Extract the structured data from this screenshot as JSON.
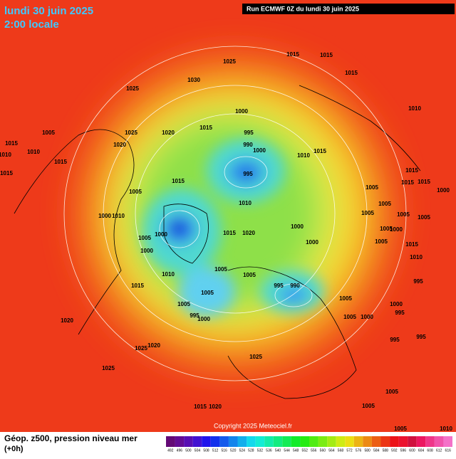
{
  "header": {
    "title": "lundi 30 juin 2025",
    "subtitle": "2:00 locale",
    "run": "Run ECMWF 0Z du lundi 30 juin 2025"
  },
  "isobar_labels": [
    "1015",
    "1015",
    "1025",
    "1015",
    "1025",
    "1030",
    "1000",
    "1010",
    "1015",
    "995",
    "990",
    "1000",
    "1005",
    "1015",
    "1010",
    "1025",
    "1020",
    "1020",
    "1015",
    "1010",
    "1015",
    "995",
    "1010",
    "1015",
    "1015",
    "1005",
    "1015",
    "1015",
    "1005",
    "1015",
    "1000",
    "1010",
    "1005",
    "1005",
    "1005",
    "1005",
    "1000",
    "1010",
    "1000",
    "1015",
    "1020",
    "1000",
    "1005",
    "1000",
    "1005",
    "1000",
    "1005",
    "1015",
    "1000",
    "1010",
    "1010",
    "1005",
    "1005",
    "1015",
    "995",
    "990",
    "1005",
    "1005",
    "995",
    "1005",
    "1000",
    "995",
    "1000",
    "1005",
    "1000",
    "995",
    "1020",
    "995",
    "995",
    "1025",
    "1020",
    "1025",
    "1025",
    "1015",
    "1020",
    "1005",
    "1005",
    "1005",
    "1010"
  ],
  "copyright": "Copyright 2025 Meteociel.fr",
  "footer": {
    "caption": "Géop. z500, pression niveau mer",
    "step": "(+0h)",
    "scale": [
      "492",
      "496",
      "500",
      "504",
      "508",
      "512",
      "516",
      "520",
      "524",
      "528",
      "532",
      "536",
      "540",
      "544",
      "548",
      "552",
      "556",
      "560",
      "564",
      "568",
      "572",
      "576",
      "580",
      "584",
      "588",
      "592",
      "596",
      "600",
      "604",
      "608",
      "612",
      "616"
    ]
  }
}
